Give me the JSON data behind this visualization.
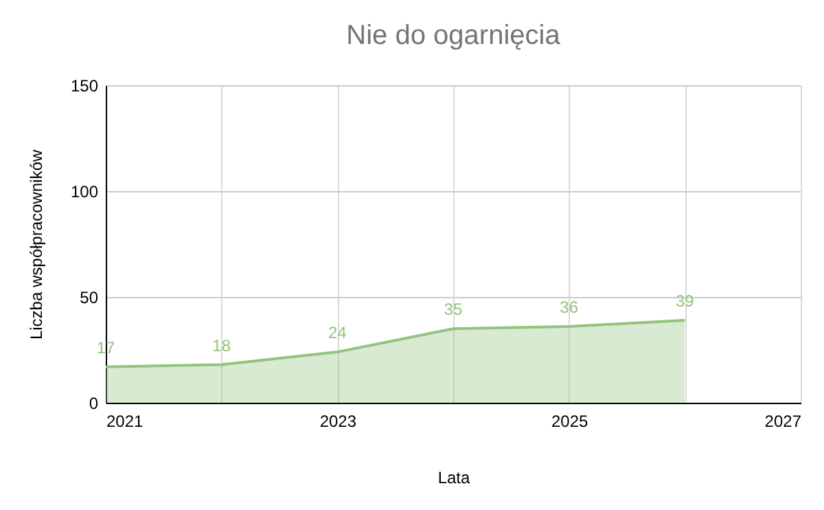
{
  "chart_data": {
    "type": "area",
    "title": "Nie do ogarnięcia",
    "xlabel": "Lata",
    "ylabel": "Liczba współpracowników",
    "x": [
      2021,
      2022,
      2023,
      2024,
      2025,
      2026
    ],
    "series": [
      {
        "color": "#93c47d",
        "values": [
          17,
          18,
          24,
          35,
          36,
          39
        ]
      }
    ],
    "xlim": [
      2021,
      2027
    ],
    "xticks": [
      2021,
      {
        "value": 2022,
        "label": null
      },
      2023,
      {
        "value": 2024,
        "label": null
      },
      2025,
      {
        "value": 2026,
        "label": null
      },
      2027
    ],
    "ylim": [
      0,
      150
    ],
    "yticks": [
      0,
      50,
      100,
      150
    ],
    "grid": true,
    "data_labels": true
  }
}
